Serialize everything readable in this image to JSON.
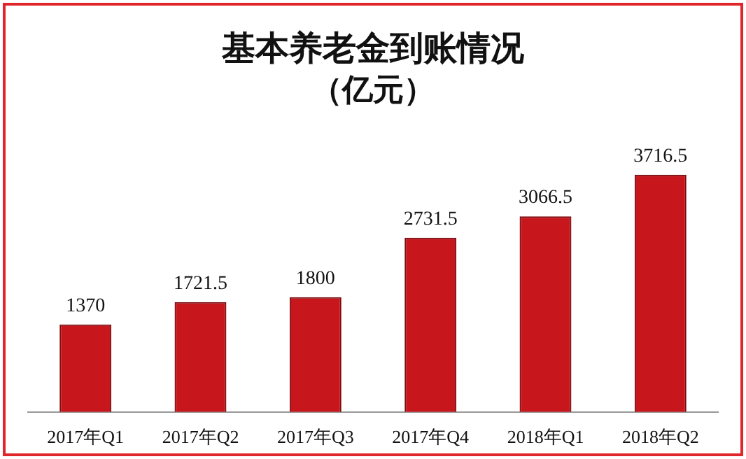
{
  "chart_data": {
    "type": "bar",
    "title": "基本养老金到账情况",
    "subtitle": "（亿元）",
    "categories": [
      "2017年Q1",
      "2017年Q2",
      "2017年Q3",
      "2017年Q4",
      "2018年Q1",
      "2018年Q2"
    ],
    "values": [
      1370,
      1721.5,
      1800,
      2731.5,
      3066.5,
      3716.5
    ],
    "color": "#c8161d",
    "data_labels": true
  }
}
